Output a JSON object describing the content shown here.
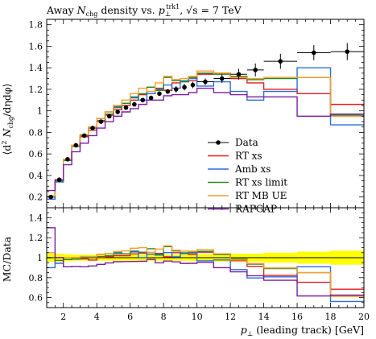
{
  "chart_data": [
    {
      "type": "line",
      "panel": "main",
      "title": "Away N_chg density vs. p_⊥^trk1, √s = 7 TeV",
      "title_parts": {
        "prefix": "Away ",
        "n": "N",
        "n_sub": "chg",
        "mid": " density vs. ",
        "p": "p",
        "p_sub": "⊥",
        "p_sup": "trk1",
        "suffix": ", √s = 7 TeV"
      },
      "ylabel": "⟨d² N_chg / dη dφ⟩",
      "ylabel_parts": {
        "open": "⟨d",
        "sq": "2",
        "n": " N",
        "n_sub": "chg",
        "rest": "/dηdφ⟩"
      },
      "xlim": [
        1,
        20
      ],
      "ylim": [
        0.1,
        1.85
      ],
      "yticks": [
        0.2,
        0.4,
        0.6,
        0.8,
        1.0,
        1.2,
        1.4,
        1.6,
        1.8
      ],
      "ytick_labels": [
        "0.2",
        "0.4",
        "0.6",
        "0.8",
        "1",
        "1.2",
        "1.4",
        "1.6",
        "1.8"
      ],
      "legend_position": "lower-right",
      "bin_edges": [
        1,
        1.5,
        2,
        2.5,
        3,
        3.5,
        4,
        4.5,
        5,
        5.5,
        6,
        6.5,
        7,
        7.5,
        8,
        8.5,
        9,
        9.5,
        10,
        11,
        12,
        13,
        14,
        16,
        18,
        20
      ],
      "data": {
        "name": "Data",
        "color": "#000000",
        "points": [
          {
            "x": 1.25,
            "y": 0.2,
            "yerr": 0.02
          },
          {
            "x": 1.75,
            "y": 0.36,
            "yerr": 0.02
          },
          {
            "x": 2.25,
            "y": 0.55,
            "yerr": 0.02
          },
          {
            "x": 2.75,
            "y": 0.68,
            "yerr": 0.02
          },
          {
            "x": 3.25,
            "y": 0.77,
            "yerr": 0.02
          },
          {
            "x": 3.75,
            "y": 0.84,
            "yerr": 0.02
          },
          {
            "x": 4.25,
            "y": 0.9,
            "yerr": 0.02
          },
          {
            "x": 4.75,
            "y": 0.95,
            "yerr": 0.02
          },
          {
            "x": 5.25,
            "y": 0.99,
            "yerr": 0.02
          },
          {
            "x": 5.75,
            "y": 1.03,
            "yerr": 0.02
          },
          {
            "x": 6.25,
            "y": 1.06,
            "yerr": 0.02
          },
          {
            "x": 6.75,
            "y": 1.1,
            "yerr": 0.02
          },
          {
            "x": 7.25,
            "y": 1.12,
            "yerr": 0.02
          },
          {
            "x": 7.75,
            "y": 1.16,
            "yerr": 0.02
          },
          {
            "x": 8.25,
            "y": 1.18,
            "yerr": 0.02
          },
          {
            "x": 8.75,
            "y": 1.2,
            "yerr": 0.03
          },
          {
            "x": 9.25,
            "y": 1.22,
            "yerr": 0.03
          },
          {
            "x": 9.75,
            "y": 1.24,
            "yerr": 0.03
          },
          {
            "x": 10.5,
            "y": 1.27,
            "yerr": 0.03
          },
          {
            "x": 11.5,
            "y": 1.3,
            "yerr": 0.04
          },
          {
            "x": 12.5,
            "y": 1.34,
            "yerr": 0.05
          },
          {
            "x": 13.5,
            "y": 1.38,
            "yerr": 0.06
          },
          {
            "x": 15,
            "y": 1.46,
            "yerr": 0.07
          },
          {
            "x": 17,
            "y": 1.54,
            "yerr": 0.07
          },
          {
            "x": 19,
            "y": 1.55,
            "yerr": 0.08
          }
        ]
      },
      "series": [
        {
          "name": "RT xs",
          "color": "#e41a1c",
          "values": [
            0.2,
            0.34,
            0.54,
            0.67,
            0.76,
            0.82,
            0.9,
            0.96,
            1.01,
            1.05,
            1.1,
            1.15,
            1.16,
            1.21,
            1.19,
            1.26,
            1.27,
            1.28,
            1.34,
            1.35,
            1.3,
            1.26,
            1.2,
            1.16,
            1.06
          ]
        },
        {
          "name": "Amb xs",
          "color": "#2b6cdc",
          "values": [
            0.18,
            0.34,
            0.54,
            0.68,
            0.77,
            0.84,
            0.93,
            0.99,
            1.04,
            1.07,
            1.13,
            1.1,
            1.16,
            1.2,
            1.24,
            1.21,
            1.28,
            1.3,
            1.23,
            1.27,
            1.18,
            1.1,
            1.18,
            1.4,
            0.87
          ]
        },
        {
          "name": "RT xs limit",
          "color": "#2a8a2a",
          "values": [
            0.2,
            0.35,
            0.54,
            0.67,
            0.77,
            0.84,
            0.91,
            0.97,
            1.03,
            1.07,
            1.12,
            1.16,
            1.22,
            1.19,
            1.31,
            1.28,
            1.27,
            1.31,
            1.35,
            1.34,
            1.32,
            1.29,
            1.3,
            1.31,
            0.96
          ]
        },
        {
          "name": "RT MB UE",
          "color": "#ff9c2a",
          "values": [
            0.21,
            0.36,
            0.55,
            0.68,
            0.78,
            0.85,
            0.93,
            0.99,
            1.05,
            1.1,
            1.16,
            1.21,
            1.18,
            1.26,
            1.32,
            1.29,
            1.3,
            1.32,
            1.37,
            1.35,
            1.31,
            1.3,
            1.31,
            1.31,
            0.95
          ]
        },
        {
          "name": "RAPGAP",
          "color": "#7a1fa2",
          "values": [
            0.26,
            0.36,
            0.5,
            0.62,
            0.7,
            0.77,
            0.84,
            0.9,
            0.95,
            0.99,
            1.02,
            1.06,
            1.1,
            1.1,
            1.14,
            1.15,
            1.15,
            1.17,
            1.21,
            1.17,
            1.15,
            1.13,
            1.13,
            0.95,
            0.97
          ]
        }
      ]
    },
    {
      "type": "line",
      "panel": "ratio",
      "ylabel": "MC/Data",
      "xlabel": "p_⊥ (leading track) [GeV]",
      "xlabel_parts": {
        "p": "p",
        "p_sub": "⊥",
        "rest": " (leading track) [GeV]"
      },
      "xlim": [
        1,
        20
      ],
      "ylim": [
        0.5,
        1.5
      ],
      "xticks": [
        2,
        4,
        6,
        8,
        10,
        12,
        14,
        16,
        18,
        20
      ],
      "xtick_labels": [
        "2",
        "4",
        "6",
        "8",
        "10",
        "12",
        "14",
        "16",
        "18",
        "20"
      ],
      "yticks": [
        0.6,
        0.8,
        1.0,
        1.2,
        1.4
      ],
      "ytick_labels": [
        "0.6",
        "0.8",
        "1",
        "1.2",
        "1.4"
      ],
      "reference_line": 1,
      "band_color": "#ffff00",
      "uncertainty_band": [
        0.04,
        0.04,
        0.035,
        0.03,
        0.03,
        0.03,
        0.03,
        0.03,
        0.03,
        0.03,
        0.03,
        0.03,
        0.03,
        0.03,
        0.03,
        0.03,
        0.03,
        0.035,
        0.035,
        0.04,
        0.04,
        0.04,
        0.05,
        0.06,
        0.07
      ]
    }
  ]
}
